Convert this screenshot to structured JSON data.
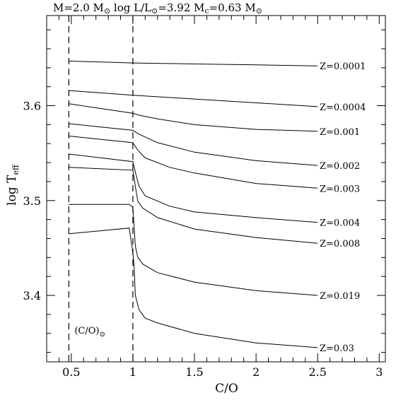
{
  "chart_data": {
    "type": "line",
    "title": "M=2.0 M⊙   log L/L⊙=3.92   Mc=0.63 M⊙",
    "title_parts": {
      "mass": "M=2.0 M",
      "luminosity_pre": "log L/L",
      "luminosity_post": "=3.92",
      "core_pre": "M",
      "core_sub": "c",
      "core_post": "=0.63 M",
      "sun_symbol": "⊙"
    },
    "xlabel": "C/O",
    "ylabel": "log T",
    "ylabel_sub": "eff",
    "xlim": [
      0.3,
      3.05
    ],
    "ylim": [
      3.33,
      3.695
    ],
    "xticks": [
      0.5,
      1,
      1.5,
      2,
      2.5,
      3
    ],
    "xtick_labels": [
      "0.5",
      "1",
      "1.5",
      "2",
      "2.5",
      "3"
    ],
    "yticks": [
      3.4,
      3.5,
      3.6
    ],
    "ytick_labels": [
      "3.4",
      "3.5",
      "3.6"
    ],
    "reference_lines": [
      {
        "x": 0.48,
        "label": "(C/O)",
        "label_sub": "⊙"
      },
      {
        "x": 1.0
      }
    ],
    "series": [
      {
        "name": "Z=0.0001",
        "x": [
          0.48,
          1.0,
          1.5,
          2.0,
          2.5
        ],
        "y": [
          3.647,
          3.645,
          3.644,
          3.643,
          3.642
        ]
      },
      {
        "name": "Z=0.0004",
        "x": [
          0.48,
          1.0,
          1.5,
          2.0,
          2.5
        ],
        "y": [
          3.616,
          3.611,
          3.607,
          3.603,
          3.599
        ]
      },
      {
        "name": "Z=0.001",
        "x": [
          0.48,
          1.0,
          1.05,
          1.2,
          1.5,
          2.0,
          2.5
        ],
        "y": [
          3.602,
          3.592,
          3.59,
          3.586,
          3.58,
          3.575,
          3.573
        ]
      },
      {
        "name": "Z=0.002",
        "x": [
          0.48,
          1.0,
          1.05,
          1.2,
          1.5,
          2.0,
          2.5
        ],
        "y": [
          3.581,
          3.574,
          3.57,
          3.561,
          3.551,
          3.542,
          3.537
        ]
      },
      {
        "name": "Z=0.003",
        "x": [
          0.48,
          1.0,
          1.04,
          1.1,
          1.3,
          1.5,
          2.0,
          2.5
        ],
        "y": [
          3.568,
          3.561,
          3.553,
          3.545,
          3.535,
          3.529,
          3.518,
          3.513
        ]
      },
      {
        "name": "Z=0.004",
        "x": [
          0.48,
          1.0,
          1.02,
          1.05,
          1.1,
          1.3,
          1.5,
          2.0,
          2.5
        ],
        "y": [
          3.549,
          3.541,
          3.53,
          3.515,
          3.505,
          3.494,
          3.488,
          3.482,
          3.477
        ]
      },
      {
        "name": "Z=0.008",
        "x": [
          0.48,
          1.0,
          1.02,
          1.04,
          1.08,
          1.2,
          1.5,
          2.0,
          2.5
        ],
        "y": [
          3.535,
          3.532,
          3.515,
          3.499,
          3.492,
          3.482,
          3.47,
          3.461,
          3.455
        ]
      },
      {
        "name": "Z=0.019",
        "x": [
          0.48,
          0.97,
          1.0,
          1.01,
          1.02,
          1.04,
          1.08,
          1.2,
          1.5,
          2.0,
          2.5
        ],
        "y": [
          3.496,
          3.496,
          3.493,
          3.472,
          3.452,
          3.44,
          3.433,
          3.424,
          3.414,
          3.405,
          3.4
        ]
      },
      {
        "name": "Z=0.03",
        "x": [
          0.48,
          0.97,
          1.0,
          1.01,
          1.02,
          1.05,
          1.1,
          1.2,
          1.5,
          2.0,
          2.5
        ],
        "y": [
          3.465,
          3.471,
          3.445,
          3.43,
          3.4,
          3.385,
          3.376,
          3.371,
          3.36,
          3.35,
          3.345
        ]
      }
    ],
    "grid": false,
    "legend": "labels at right end of each curve"
  }
}
